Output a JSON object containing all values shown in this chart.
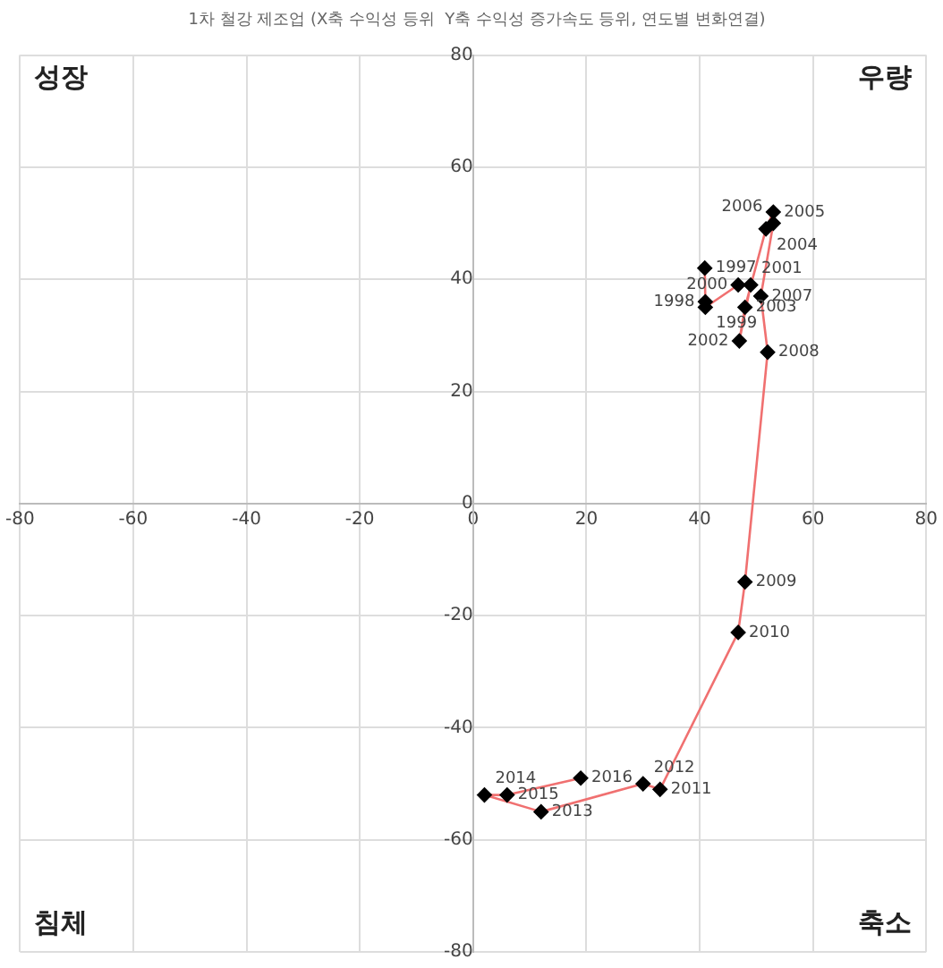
{
  "chart_data": {
    "type": "line",
    "title": "1차 철강 제조업 (X축 수익성 등위  Y축 수익성 증가속도 등위, 연도별 변화연결)",
    "series": [
      {
        "color": "#f07070",
        "x": [
          40.9,
          41,
          41,
          46.8,
          49,
          47,
          48,
          51.7,
          53,
          53,
          50.8,
          52,
          48,
          46.8,
          33,
          30,
          12,
          2,
          6,
          19
        ],
        "values": [
          42,
          36,
          35,
          39,
          39,
          29,
          35,
          49,
          52,
          50,
          37,
          27,
          -14,
          -23,
          -51,
          -50,
          -55,
          -52,
          -52,
          -49
        ]
      }
    ],
    "xlim": [
      -80,
      80
    ],
    "xticks": [
      -80,
      -60,
      -40,
      -20,
      0,
      20,
      40,
      60,
      80
    ],
    "ylim": [
      -80,
      80
    ],
    "yticks": [
      -80,
      -60,
      -40,
      -20,
      0,
      20,
      40,
      60,
      80
    ],
    "grid": true,
    "legend": false,
    "marker": "diamond",
    "line_style": "solid",
    "annotations": [
      "성장",
      "우량",
      "침체",
      "축소",
      {
        "text": "1997",
        "x": 40.9,
        "y": 42
      },
      {
        "text": "1998",
        "x": 41,
        "y": 36
      },
      {
        "text": "1999",
        "x": 41,
        "y": 35
      },
      {
        "text": "2000",
        "x": 46.8,
        "y": 39
      },
      {
        "text": "2001",
        "x": 49,
        "y": 39
      },
      {
        "text": "2002",
        "x": 47,
        "y": 29
      },
      {
        "text": "2003",
        "x": 48,
        "y": 35
      },
      {
        "text": "2004",
        "x": 51.7,
        "y": 49
      },
      {
        "text": "2005",
        "x": 53,
        "y": 52
      },
      {
        "text": "2006",
        "x": 53,
        "y": 50
      },
      {
        "text": "2007",
        "x": 50.8,
        "y": 37
      },
      {
        "text": "2008",
        "x": 52,
        "y": 27
      },
      {
        "text": "2009",
        "x": 48,
        "y": -14
      },
      {
        "text": "2010",
        "x": 46.8,
        "y": -23
      },
      {
        "text": "2011",
        "x": 33,
        "y": -51
      },
      {
        "text": "2012",
        "x": 30,
        "y": -50
      },
      {
        "text": "2013",
        "x": 12,
        "y": -55
      },
      {
        "text": "2014",
        "x": 2,
        "y": -52
      },
      {
        "text": "2015",
        "x": 6,
        "y": -52
      },
      {
        "text": "2016",
        "x": 19,
        "y": -49
      }
    ]
  }
}
